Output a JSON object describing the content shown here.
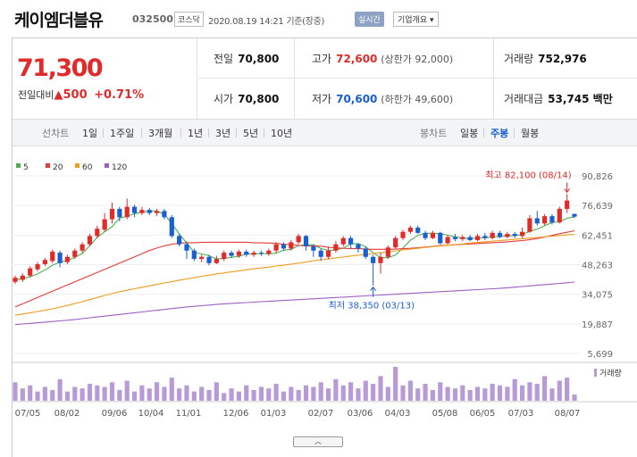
{
  "header": {
    "name": "케이엠더블유",
    "code": "032500",
    "market": "코스닥",
    "timestamp": "2020.08.19 14:21 기준(장중)",
    "realtime_label": "실시간",
    "info_label": "기업개요 ▾"
  },
  "price": {
    "current": "71,300",
    "change_label": "전일대비",
    "change_arrow": "▲",
    "change": "500",
    "change_pct": "+0.71%"
  },
  "stats": {
    "prev_label": "전일",
    "prev": "70,800",
    "high_label": "고가",
    "high": "72,600",
    "upper_limit": "(상한가 92,000)",
    "volume_label": "거래량",
    "volume": "752,976",
    "open_label": "시가",
    "open": "70,800",
    "low_label": "저가",
    "low": "70,600",
    "lower_limit": "(하한가 49,600)",
    "amount_label": "거래대금",
    "amount": "53,745 백만"
  },
  "tabs": {
    "line_label": "선차트",
    "line": [
      "1일",
      "1주일",
      "3개월",
      "1년",
      "3년",
      "5년",
      "10년"
    ],
    "candle_label": "봉차트",
    "candle": [
      "일봉",
      "주봉",
      "월봉"
    ],
    "candle_selected": "주봉"
  },
  "colors": {
    "up": "#e12b2b",
    "down": "#1a5fd0",
    "ma5": "#4caf50",
    "ma20": "#e53935",
    "ma60": "#ef9a1f",
    "ma120": "#9c5fc4",
    "volume": "#b89bd6"
  },
  "chart_data": {
    "type": "candlestick",
    "legend": [
      {
        "name": "5",
        "color": "#4caf50"
      },
      {
        "name": "20",
        "color": "#e53935"
      },
      {
        "name": "60",
        "color": "#ef9a1f"
      },
      {
        "name": "120",
        "color": "#9c5fc4"
      }
    ],
    "y_ticks": [
      "90,826",
      "76,639",
      "62,451",
      "48,263",
      "34,075",
      "19,887",
      "5,699"
    ],
    "ylim": [
      5699,
      90826
    ],
    "x_ticks": [
      "07/05",
      "08/02",
      "09/06",
      "10/04",
      "11/01",
      "12/06",
      "01/03",
      "02/07",
      "03/06",
      "04/03",
      "05/08",
      "06/05",
      "07/03",
      "08/07"
    ],
    "annotations": {
      "high": "최고 82,100 (08/14)",
      "low": "최저 38,350 (03/13)"
    },
    "volume_label": "거래량",
    "candles": [
      {
        "o": 40000,
        "c": 42000,
        "h": 43000,
        "l": 39000
      },
      {
        "o": 41000,
        "c": 43000,
        "h": 44000,
        "l": 40000
      },
      {
        "o": 43000,
        "c": 46500,
        "h": 47500,
        "l": 42000
      },
      {
        "o": 46000,
        "c": 48500,
        "h": 49500,
        "l": 45000
      },
      {
        "o": 48500,
        "c": 50500,
        "h": 51500,
        "l": 47500
      },
      {
        "o": 50000,
        "c": 54500,
        "h": 55500,
        "l": 49000
      },
      {
        "o": 54000,
        "c": 49000,
        "h": 55000,
        "l": 47000
      },
      {
        "o": 49500,
        "c": 52000,
        "h": 53000,
        "l": 48500
      },
      {
        "o": 52000,
        "c": 55000,
        "h": 56000,
        "l": 51000
      },
      {
        "o": 55000,
        "c": 58000,
        "h": 59000,
        "l": 54000
      },
      {
        "o": 58000,
        "c": 62000,
        "h": 63000,
        "l": 57000
      },
      {
        "o": 62000,
        "c": 65500,
        "h": 67000,
        "l": 61000
      },
      {
        "o": 65000,
        "c": 70000,
        "h": 73000,
        "l": 64000
      },
      {
        "o": 70000,
        "c": 75000,
        "h": 78000,
        "l": 68000
      },
      {
        "o": 75000,
        "c": 71000,
        "h": 76000,
        "l": 69000
      },
      {
        "o": 71000,
        "c": 76000,
        "h": 80000,
        "l": 70000
      },
      {
        "o": 76000,
        "c": 73000,
        "h": 77000,
        "l": 71000
      },
      {
        "o": 73000,
        "c": 74500,
        "h": 76000,
        "l": 72000
      },
      {
        "o": 74500,
        "c": 73000,
        "h": 75500,
        "l": 72000
      },
      {
        "o": 73000,
        "c": 74000,
        "h": 75000,
        "l": 71500
      },
      {
        "o": 74000,
        "c": 71000,
        "h": 75000,
        "l": 70000
      },
      {
        "o": 71000,
        "c": 62000,
        "h": 72000,
        "l": 61000
      },
      {
        "o": 62000,
        "c": 58000,
        "h": 63000,
        "l": 57000
      },
      {
        "o": 58000,
        "c": 55000,
        "h": 59500,
        "l": 51000
      },
      {
        "o": 55000,
        "c": 51000,
        "h": 56000,
        "l": 50000
      },
      {
        "o": 51000,
        "c": 52000,
        "h": 53000,
        "l": 49500
      },
      {
        "o": 52000,
        "c": 49000,
        "h": 53000,
        "l": 48000
      },
      {
        "o": 49000,
        "c": 51000,
        "h": 52500,
        "l": 48500
      },
      {
        "o": 51000,
        "c": 54000,
        "h": 55000,
        "l": 50000
      },
      {
        "o": 54000,
        "c": 52500,
        "h": 55000,
        "l": 51500
      },
      {
        "o": 52500,
        "c": 54500,
        "h": 55500,
        "l": 51500
      },
      {
        "o": 54500,
        "c": 53000,
        "h": 55500,
        "l": 52000
      },
      {
        "o": 53000,
        "c": 54000,
        "h": 55000,
        "l": 52000
      },
      {
        "o": 54000,
        "c": 53500,
        "h": 55000,
        "l": 52500
      },
      {
        "o": 53500,
        "c": 55000,
        "h": 56000,
        "l": 52500
      },
      {
        "o": 55000,
        "c": 58000,
        "h": 59000,
        "l": 54000
      },
      {
        "o": 58000,
        "c": 56000,
        "h": 59000,
        "l": 55000
      },
      {
        "o": 56000,
        "c": 59000,
        "h": 60000,
        "l": 55000
      },
      {
        "o": 59000,
        "c": 62000,
        "h": 63000,
        "l": 58000
      },
      {
        "o": 62000,
        "c": 57000,
        "h": 62500,
        "l": 55000
      },
      {
        "o": 57000,
        "c": 55000,
        "h": 58000,
        "l": 52000
      },
      {
        "o": 55000,
        "c": 52000,
        "h": 56000,
        "l": 50000
      },
      {
        "o": 52000,
        "c": 55000,
        "h": 57000,
        "l": 51000
      },
      {
        "o": 55000,
        "c": 58000,
        "h": 59500,
        "l": 54000
      },
      {
        "o": 58000,
        "c": 61000,
        "h": 62000,
        "l": 57000
      },
      {
        "o": 61000,
        "c": 58000,
        "h": 62000,
        "l": 56000
      },
      {
        "o": 58000,
        "c": 56000,
        "h": 58500,
        "l": 54000
      },
      {
        "o": 56000,
        "c": 52000,
        "h": 57000,
        "l": 51000
      },
      {
        "o": 52000,
        "c": 49000,
        "h": 53000,
        "l": 38350
      },
      {
        "o": 49000,
        "c": 52000,
        "h": 54000,
        "l": 44000
      },
      {
        "o": 52000,
        "c": 56500,
        "h": 57500,
        "l": 51000
      },
      {
        "o": 56500,
        "c": 61000,
        "h": 62000,
        "l": 56000
      },
      {
        "o": 61000,
        "c": 64000,
        "h": 65000,
        "l": 60000
      },
      {
        "o": 64000,
        "c": 66000,
        "h": 67000,
        "l": 63000
      },
      {
        "o": 66000,
        "c": 63500,
        "h": 67000,
        "l": 63000
      },
      {
        "o": 63500,
        "c": 61000,
        "h": 64500,
        "l": 60000
      },
      {
        "o": 61000,
        "c": 63500,
        "h": 64500,
        "l": 60500
      },
      {
        "o": 63500,
        "c": 58500,
        "h": 64000,
        "l": 58000
      },
      {
        "o": 58500,
        "c": 61500,
        "h": 62500,
        "l": 58000
      },
      {
        "o": 61500,
        "c": 60500,
        "h": 63000,
        "l": 59500
      },
      {
        "o": 60500,
        "c": 61500,
        "h": 62500,
        "l": 59500
      },
      {
        "o": 61500,
        "c": 60000,
        "h": 62500,
        "l": 59500
      },
      {
        "o": 60000,
        "c": 62000,
        "h": 63000,
        "l": 59500
      },
      {
        "o": 62000,
        "c": 61000,
        "h": 63500,
        "l": 60000
      },
      {
        "o": 61000,
        "c": 63500,
        "h": 64500,
        "l": 60500
      },
      {
        "o": 63500,
        "c": 61500,
        "h": 64500,
        "l": 61000
      },
      {
        "o": 61500,
        "c": 63000,
        "h": 64000,
        "l": 61000
      },
      {
        "o": 63000,
        "c": 62000,
        "h": 64000,
        "l": 61000
      },
      {
        "o": 62000,
        "c": 64000,
        "h": 66000,
        "l": 61000
      },
      {
        "o": 64000,
        "c": 70500,
        "h": 72000,
        "l": 63500
      },
      {
        "o": 70500,
        "c": 68000,
        "h": 74000,
        "l": 67000
      },
      {
        "o": 68000,
        "c": 71500,
        "h": 72500,
        "l": 67000
      },
      {
        "o": 71500,
        "c": 68500,
        "h": 72500,
        "l": 67500
      },
      {
        "o": 68500,
        "c": 75000,
        "h": 76000,
        "l": 68000
      },
      {
        "o": 75000,
        "c": 79000,
        "h": 82100,
        "l": 73000
      },
      {
        "o": 72600,
        "c": 71300,
        "h": 72600,
        "l": 70600
      }
    ],
    "series": [
      {
        "name": "5",
        "values": [
          41000,
          41500,
          42500,
          43800,
          45800,
          48000,
          49400,
          50200,
          51800,
          53600,
          57300,
          61400,
          64000,
          66500,
          70600,
          71400,
          72700,
          73400,
          73900,
          73900,
          72400,
          68000,
          63000,
          58600,
          54100,
          53400,
          52600,
          51000,
          51200,
          51800,
          52200,
          53400,
          53300,
          53600,
          53400,
          53800,
          55200,
          55600,
          57400,
          57800,
          57800,
          56000,
          55000,
          55400,
          56200,
          58200,
          58400,
          56800,
          54000,
          51600,
          51600,
          52900,
          56200,
          60000,
          62300,
          63300,
          63300,
          63100,
          62400,
          61600,
          61000,
          60700,
          61100,
          61100,
          61600,
          61700,
          62200,
          62200,
          62600,
          64300,
          65300,
          66900,
          68500,
          68800,
          70500,
          71200
        ]
      },
      {
        "name": "20",
        "values": [
          28000,
          29500,
          31000,
          32500,
          34000,
          35500,
          37000,
          38500,
          40000,
          41500,
          43000,
          44500,
          46000,
          47500,
          49000,
          50500,
          52000,
          53500,
          55000,
          56200,
          57300,
          58000,
          58600,
          58700,
          58800,
          58900,
          59000,
          59000,
          59000,
          59000,
          59000,
          59000,
          58800,
          58700,
          58600,
          58500,
          58000,
          57800,
          57500,
          57300,
          57200,
          57100,
          56600,
          56300,
          56100,
          56000,
          55900,
          55700,
          55600,
          55600,
          55600,
          55700,
          55900,
          56100,
          56400,
          56700,
          57000,
          57400,
          57600,
          57800,
          58000,
          58200,
          58400,
          58600,
          58800,
          59000,
          59200,
          59500,
          59800,
          60200,
          60800,
          61500,
          62300,
          63100,
          63800,
          64500
        ]
      },
      {
        "name": "60",
        "values": [
          24000,
          24600,
          25200,
          25800,
          26400,
          27100,
          27900,
          28700,
          29600,
          30500,
          31500,
          32500,
          33500,
          34400,
          35300,
          36000,
          36700,
          37400,
          38100,
          38800,
          39500,
          40100,
          40800,
          41400,
          42000,
          42700,
          43200,
          43800,
          44300,
          44800,
          45300,
          45800,
          46300,
          46700,
          47100,
          47600,
          48000,
          48500,
          49000,
          49500,
          50100,
          50600,
          51000,
          51500,
          51900,
          52400,
          52800,
          53200,
          53600,
          54000,
          54400,
          54900,
          55300,
          55700,
          56100,
          56500,
          56900,
          57200,
          57600,
          57900,
          58200,
          58600,
          58900,
          59200,
          59500,
          59800,
          60100,
          60400,
          60700,
          61000,
          61300,
          61600,
          61900,
          62200,
          62500,
          62800
        ]
      },
      {
        "name": "120",
        "values": [
          19500,
          19800,
          20100,
          20400,
          20700,
          21000,
          21300,
          21600,
          22000,
          22400,
          22800,
          23200,
          23600,
          24000,
          24400,
          24800,
          25200,
          25600,
          26000,
          26400,
          26800,
          27200,
          27600,
          28000,
          28300,
          28600,
          28900,
          29200,
          29500,
          29700,
          29900,
          30100,
          30300,
          30500,
          30700,
          30900,
          31100,
          31300,
          31500,
          31700,
          31900,
          32100,
          32300,
          32500,
          32700,
          32900,
          33100,
          33300,
          33500,
          33700,
          33900,
          34100,
          34300,
          34500,
          34700,
          34900,
          35100,
          35300,
          35500,
          35700,
          35900,
          36100,
          36300,
          36500,
          36700,
          36900,
          37200,
          37500,
          37800,
          38100,
          38400,
          38700,
          39000,
          39300,
          39600,
          39900
        ]
      }
    ],
    "volume": [
      12,
      8,
      10,
      6,
      9,
      7,
      14,
      6,
      9,
      8,
      11,
      10,
      9,
      12,
      7,
      13,
      6,
      10,
      8,
      12,
      9,
      15,
      8,
      10,
      6,
      9,
      7,
      12,
      5,
      8,
      6,
      10,
      7,
      9,
      8,
      11,
      6,
      9,
      7,
      10,
      9,
      12,
      8,
      14,
      10,
      12,
      8,
      13,
      11,
      16,
      9,
      22,
      10,
      13,
      8,
      11,
      7,
      12,
      9,
      8,
      10,
      7,
      9,
      8,
      11,
      10,
      9,
      14,
      10,
      12,
      11,
      16,
      8,
      13,
      15,
      4
    ]
  }
}
